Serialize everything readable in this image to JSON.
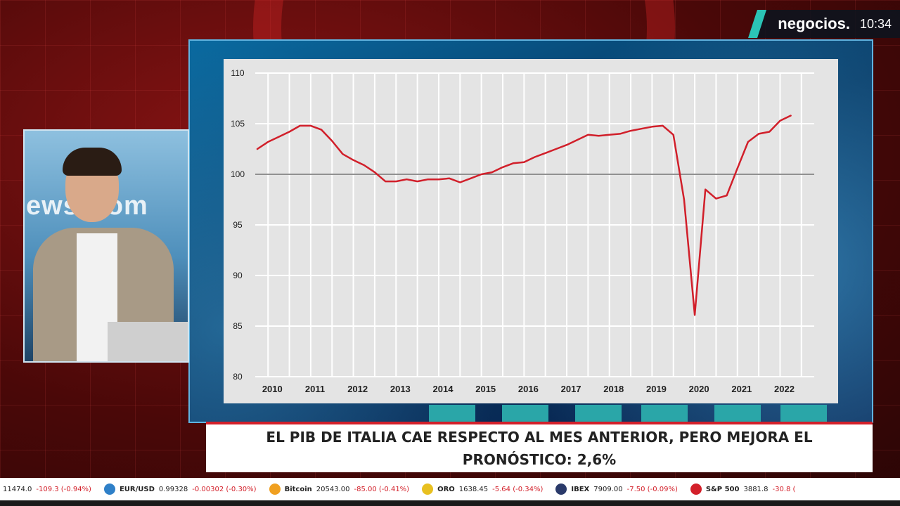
{
  "broadcast": {
    "channel": "negocios.",
    "time": "10:34",
    "studio_backdrop_text": "ewsroom",
    "headline": "EL PIB DE ITALIA CAE RESPECTO AL MES ANTERIOR, PERO MEJORA EL PRONÓSTICO: 2,6%"
  },
  "ticker": [
    {
      "name": "",
      "value": "11474.0",
      "change": "-109.3 (-0.94%)",
      "icon": "",
      "color": "#ffffff"
    },
    {
      "name": "EUR/USD",
      "value": "0.99328",
      "change": "-0.00302 (-0.30%)",
      "icon": "euro-dollar-icon",
      "color": "#2f80c8"
    },
    {
      "name": "Bitcoin",
      "value": "20543.00",
      "change": "-85.00 (-0.41%)",
      "icon": "bitcoin-icon",
      "color": "#f0a020"
    },
    {
      "name": "ORO",
      "value": "1638.45",
      "change": "-5.64 (-0.34%)",
      "icon": "gold-icon",
      "color": "#e8c020"
    },
    {
      "name": "IBEX",
      "value": "7909.00",
      "change": "-7.50 (-0.09%)",
      "icon": "ibex-icon",
      "color": "#2a3a6a"
    },
    {
      "name": "S&P 500",
      "value": "3881.8",
      "change": "-30.8 (",
      "icon": "sp500-icon",
      "color": "#d3202a"
    }
  ],
  "chart_data": {
    "type": "line",
    "title": "",
    "xlabel": "",
    "ylabel": "",
    "x_ticks": [
      "2010",
      "2011",
      "2012",
      "2013",
      "2014",
      "2015",
      "2016",
      "2017",
      "2018",
      "2019",
      "2020",
      "2021",
      "2022"
    ],
    "y_ticks": [
      "110",
      "105",
      "100",
      "95",
      "90",
      "85",
      "80"
    ],
    "xlim": [
      2009.7,
      2022.8
    ],
    "ylim": [
      80,
      110
    ],
    "reference_line": 100,
    "grid": true,
    "legend": "none",
    "series": [
      {
        "color": "#d11f2a",
        "x": [
          2009.75,
          2010.0,
          2010.25,
          2010.5,
          2010.75,
          2011.0,
          2011.25,
          2011.5,
          2011.75,
          2012.0,
          2012.25,
          2012.5,
          2012.75,
          2013.0,
          2013.25,
          2013.5,
          2013.75,
          2014.0,
          2014.25,
          2014.5,
          2014.75,
          2015.0,
          2015.25,
          2015.5,
          2015.75,
          2016.0,
          2016.25,
          2016.5,
          2016.75,
          2017.0,
          2017.25,
          2017.5,
          2017.75,
          2018.0,
          2018.25,
          2018.5,
          2018.75,
          2019.0,
          2019.25,
          2019.5,
          2019.75,
          2020.0,
          2020.25,
          2020.5,
          2020.75,
          2021.0,
          2021.25,
          2021.5,
          2021.75,
          2022.0,
          2022.25
        ],
        "y": [
          102.5,
          103.2,
          103.7,
          104.2,
          104.8,
          104.8,
          104.4,
          103.3,
          102.0,
          101.4,
          100.9,
          100.2,
          99.3,
          99.3,
          99.5,
          99.3,
          99.5,
          99.5,
          99.6,
          99.2,
          99.6,
          100.0,
          100.2,
          100.7,
          101.1,
          101.2,
          101.7,
          102.1,
          102.5,
          102.9,
          103.4,
          103.9,
          103.8,
          103.9,
          104.0,
          104.3,
          104.5,
          104.7,
          104.8,
          103.9,
          97.5,
          86.1,
          98.5,
          97.6,
          97.9,
          100.6,
          103.2,
          104.0,
          104.2,
          105.3,
          105.8
        ]
      }
    ]
  }
}
